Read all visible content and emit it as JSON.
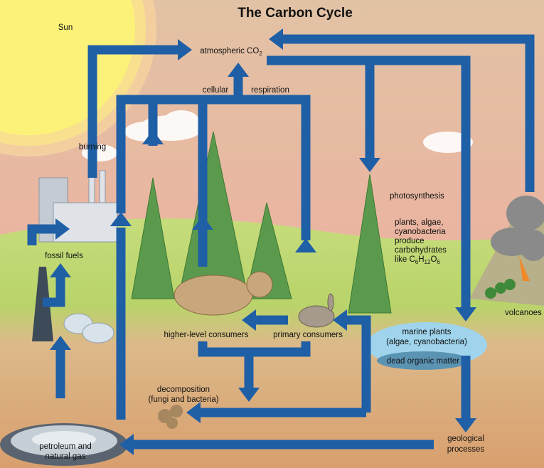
{
  "title": "The Carbon Cycle",
  "labels": {
    "sun": "Sun",
    "atmospheric_co2": {
      "text": "atmospheric CO",
      "subscript": "2"
    },
    "cellular": "cellular",
    "respiration": "respiration",
    "burning": "burning",
    "photosynthesis": "photosynthesis",
    "producers": {
      "lines": [
        "plants, algae,",
        "cyanobacteria",
        "produce",
        "carbohydrates"
      ],
      "formula": [
        "like C",
        "6",
        "H",
        "12",
        "O",
        "6"
      ]
    },
    "fossil_fuels": "fossil fuels",
    "volcanoes": "volcanoes",
    "higher_level_consumers": "higher-level consumers",
    "primary_consumers": "primary consumers",
    "marine_plants": [
      "marine plants",
      "(algae, cyanobacteria)"
    ],
    "dead_organic_matter": "dead organic matter",
    "decomposition": [
      "decomposition",
      "(fungi and bacteria)"
    ],
    "petroleum": [
      "petroleum and",
      "natural gas"
    ],
    "geological": [
      "geological",
      "processes"
    ]
  }
}
